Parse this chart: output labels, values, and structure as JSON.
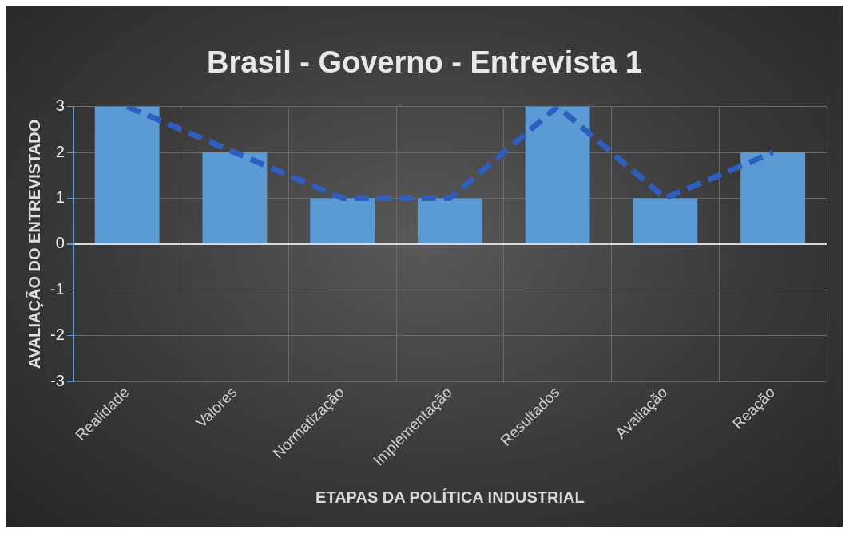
{
  "chart_data": {
    "type": "bar",
    "title": "Brasil - Governo - Entrevista 1",
    "xlabel": "ETAPAS DA POLÍTICA INDUSTRIAL",
    "ylabel": "AVALIAÇÃO DO ENTREVISTADO",
    "categories": [
      "Realidade",
      "Valores",
      "Normatização",
      "Implementação",
      "Resultados",
      "Avaliação",
      "Reação"
    ],
    "series": [
      {
        "color": "#5b9bd5",
        "values": [
          3,
          2,
          1,
          1,
          3,
          1,
          2
        ]
      },
      {
        "type": "line",
        "color": "#2e5fc0",
        "line_style": "dashed",
        "marker": "none",
        "values": [
          3,
          2,
          1,
          1,
          3,
          1,
          2
        ]
      }
    ],
    "ylim": [
      -3,
      3
    ],
    "yticks": [
      -3,
      -2,
      -1,
      0,
      1,
      2,
      3
    ],
    "grid": true,
    "legend": false
  }
}
